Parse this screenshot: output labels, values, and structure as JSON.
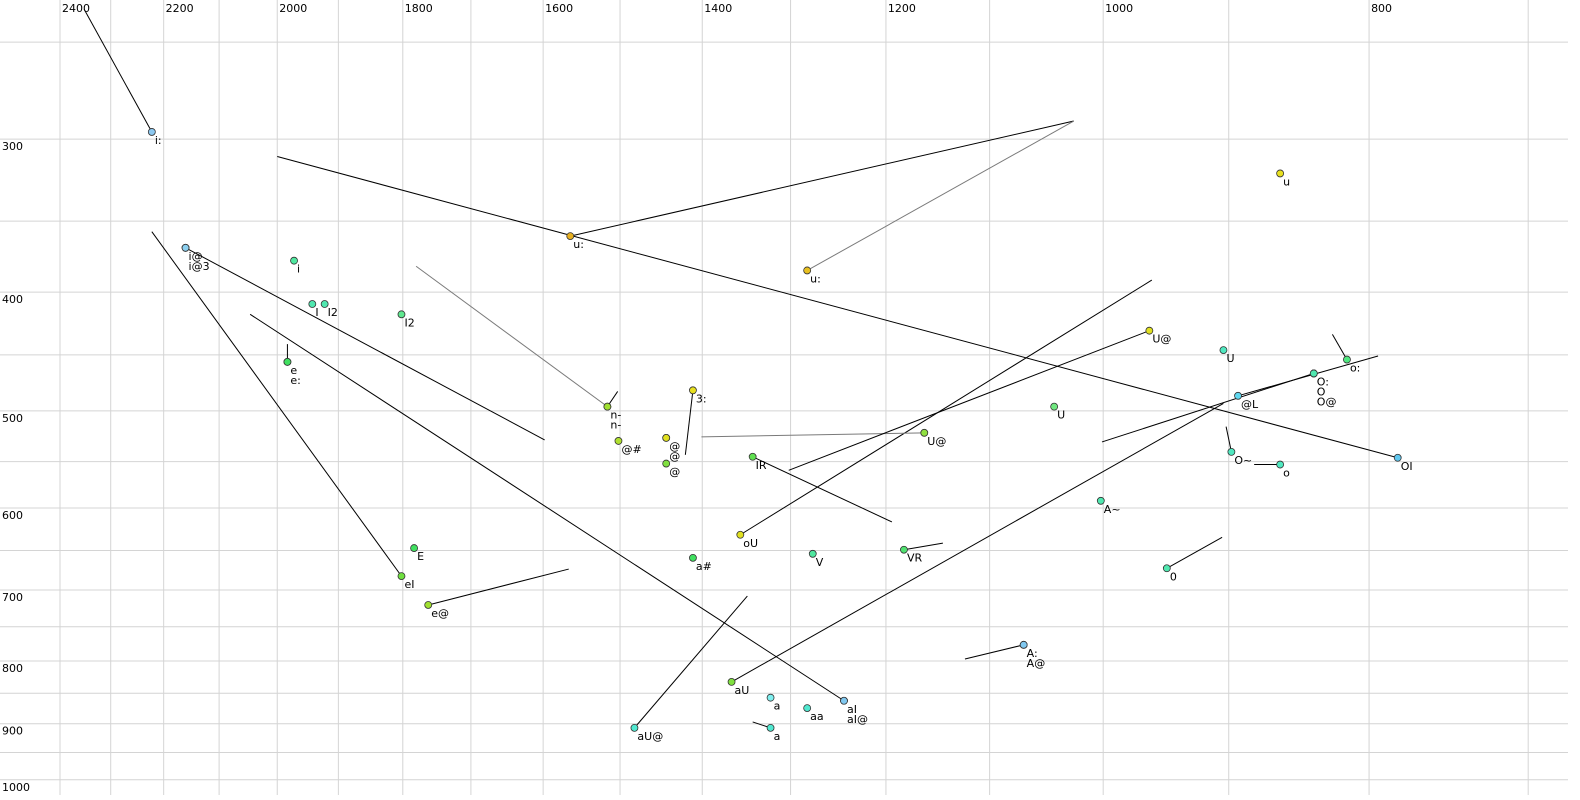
{
  "chart_data": {
    "type": "scatter",
    "xscale": "log",
    "yscale": "log",
    "xlim": [
      2400,
      677
    ],
    "ylim": [
      231,
      1029
    ],
    "xticks": [
      2400,
      2200,
      2000,
      1800,
      1600,
      1400,
      1200,
      1000,
      800
    ],
    "xminor": [
      2300,
      2100,
      1900,
      1700,
      1500,
      1300,
      1100,
      900,
      700
    ],
    "yticks": [
      300,
      400,
      500,
      600,
      700,
      800,
      900,
      1000
    ],
    "yminor": [
      250,
      350,
      450,
      550,
      650,
      750,
      850,
      950
    ],
    "grid": true,
    "muted_color": "#7a7a7a",
    "points": [
      {
        "label": "i:",
        "x": 2222,
        "y": 296,
        "color": "#8cc8f0",
        "end_x": 2352,
        "end_y": 235
      },
      {
        "label": "u",
        "x": 862,
        "y": 320,
        "color": "#e8e020"
      },
      {
        "label": "u:",
        "x": 1564,
        "y": 360,
        "color": "#e8b020",
        "end_x": 1025,
        "end_y": 290
      },
      {
        "label": "u:",
        "x": 1282,
        "y": 384,
        "color": "#e8c020",
        "muted": true,
        "end_x": 1025,
        "end_y": 290
      },
      {
        "label": "i@",
        "x": 2160,
        "y": 368,
        "color": "#8cd0f0",
        "end_x": 1598,
        "end_y": 528
      },
      {
        "label": "i@3",
        "x": 2160,
        "y": 368,
        "color": "#8cd0f0"
      },
      {
        "label": "i",
        "x": 1972,
        "y": 377,
        "color": "#50e8a0"
      },
      {
        "label": "I",
        "x": 1942,
        "y": 409,
        "color": "#50e8b0"
      },
      {
        "label": "I2",
        "x": 1922,
        "y": 409,
        "color": "#50e8b0"
      },
      {
        "label": "I2",
        "x": 1802,
        "y": 417,
        "color": "#60e890",
        "muted": true
      },
      {
        "label": "e",
        "x": 1983,
        "y": 456,
        "color": "#40e060",
        "end_x": 1983,
        "end_y": 441
      },
      {
        "label": "e:",
        "x": 1983,
        "y": 456,
        "color": "#40e060"
      },
      {
        "label": "E",
        "x": 1783,
        "y": 647,
        "color": "#40e060"
      },
      {
        "label": "eI",
        "x": 1802,
        "y": 682,
        "color": "#70e040",
        "end_x": 2222,
        "end_y": 357
      },
      {
        "label": "e@",
        "x": 1762,
        "y": 720,
        "color": "#a0e030",
        "end_x": 1566,
        "end_y": 673
      },
      {
        "label": "n-",
        "x": 1516,
        "y": 496,
        "color": "#a0e030",
        "muted": true,
        "end_x": 1780,
        "end_y": 381
      },
      {
        "label": "n-",
        "x": 1516,
        "y": 496,
        "color": "#a0e030",
        "end_x": 1503,
        "end_y": 482
      },
      {
        "label": "@#",
        "x": 1502,
        "y": 529,
        "color": "#b0e030"
      },
      {
        "label": "@",
        "x": 1443,
        "y": 526,
        "color": "#e0e020"
      },
      {
        "label": "@",
        "x": 1443,
        "y": 526,
        "color": "#e0e020"
      },
      {
        "label": "3:",
        "x": 1411,
        "y": 481,
        "color": "#e8e020",
        "end_x": 1420,
        "end_y": 543
      },
      {
        "label": "@",
        "x": 1443,
        "y": 552,
        "color": "#80e040",
        "muted": true
      },
      {
        "label": "IR",
        "x": 1342,
        "y": 545,
        "color": "#60e050",
        "end_x": 1194,
        "end_y": 616
      },
      {
        "label": "oU",
        "x": 1356,
        "y": 631,
        "color": "#e0e020",
        "end_x": 960,
        "end_y": 391
      },
      {
        "label": "a#",
        "x": 1411,
        "y": 659,
        "color": "#40e060"
      },
      {
        "label": "V",
        "x": 1276,
        "y": 654,
        "color": "#50e8a0"
      },
      {
        "label": "VR",
        "x": 1182,
        "y": 649,
        "color": "#50e070",
        "end_x": 1144,
        "end_y": 641
      },
      {
        "label": "U@",
        "x": 1162,
        "y": 521,
        "color": "#90e040",
        "muted": true,
        "end_x": 1401,
        "end_y": 525
      },
      {
        "label": "U@",
        "x": 962,
        "y": 430,
        "color": "#e0e020",
        "end_x": 1302,
        "end_y": 559
      },
      {
        "label": "U",
        "x": 904,
        "y": 446,
        "color": "#50e8c0"
      },
      {
        "label": "U",
        "x": 1042,
        "y": 496,
        "color": "#70e880",
        "muted": true
      },
      {
        "label": "O:",
        "x": 838,
        "y": 466,
        "color": "#50e8b0",
        "end_x": 1001,
        "end_y": 530
      },
      {
        "label": "O",
        "x": 838,
        "y": 466,
        "color": "#50e8b0"
      },
      {
        "label": "O@",
        "x": 838,
        "y": 466,
        "color": "#50e8b0"
      },
      {
        "label": "o:",
        "x": 815,
        "y": 454,
        "color": "#50e880",
        "end_x": 825,
        "end_y": 433
      },
      {
        "label": "@L",
        "x": 893,
        "y": 486,
        "color": "#60d8f0",
        "end_x": 794,
        "end_y": 451
      },
      {
        "label": "O~",
        "x": 898,
        "y": 540,
        "color": "#50e8c0",
        "end_x": 902,
        "end_y": 515
      },
      {
        "label": "o",
        "x": 862,
        "y": 553,
        "color": "#50e8c0",
        "end_x": 881,
        "end_y": 553
      },
      {
        "label": "OI",
        "x": 781,
        "y": 546,
        "color": "#60c8f0",
        "end_x": 2000,
        "end_y": 310
      },
      {
        "label": "A~",
        "x": 1002,
        "y": 592,
        "color": "#50e8b0"
      },
      {
        "label": "0",
        "x": 948,
        "y": 672,
        "color": "#50e8b0",
        "end_x": 905,
        "end_y": 634
      },
      {
        "label": "A:",
        "x": 1069,
        "y": 776,
        "color": "#80c8f0",
        "end_x": 1123,
        "end_y": 797
      },
      {
        "label": "A@",
        "x": 1069,
        "y": 776,
        "color": "#80c8f0"
      },
      {
        "label": "aU",
        "x": 1366,
        "y": 832,
        "color": "#80e040",
        "end_x": 904,
        "end_y": 493
      },
      {
        "label": "a",
        "x": 1322,
        "y": 857,
        "color": "#80f0f0",
        "muted": true
      },
      {
        "label": "aa",
        "x": 1282,
        "y": 874,
        "color": "#50e8d0"
      },
      {
        "label": "aI",
        "x": 1243,
        "y": 862,
        "color": "#80c8f0",
        "end_x": 2046,
        "end_y": 417
      },
      {
        "label": "aI@",
        "x": 1243,
        "y": 862,
        "color": "#80c8f0"
      },
      {
        "label": "a",
        "x": 1322,
        "y": 907,
        "color": "#50e8d0",
        "end_x": 1342,
        "end_y": 897
      },
      {
        "label": "aU@",
        "x": 1482,
        "y": 907,
        "color": "#50e8d0",
        "end_x": 1348,
        "end_y": 708
      }
    ]
  }
}
